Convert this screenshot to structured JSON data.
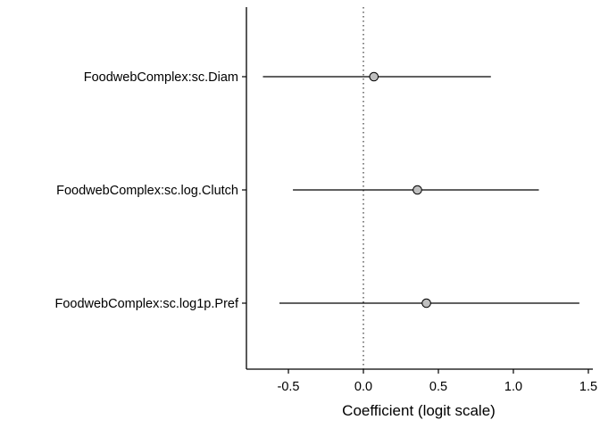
{
  "chart_data": {
    "type": "scatter",
    "subtype": "coefficient-plot",
    "title": "",
    "xlabel": "Coefficient (logit scale)",
    "ylabel": "",
    "xlim": [
      -0.78,
      1.53
    ],
    "xticks": [
      -0.5,
      0.0,
      0.5,
      1.0,
      1.5
    ],
    "xtick_labels": [
      "-0.5",
      "0.0",
      "0.5",
      "1.0",
      "1.5"
    ],
    "reference_line": {
      "x": 0,
      "style": "dotted"
    },
    "grid": false,
    "legend": "none",
    "categories": [
      "FoodwebComplex:sc.Diam",
      "FoodwebComplex:sc.log.Clutch",
      "FoodwebComplex:sc.log1p.Pref"
    ],
    "series": [
      {
        "estimate": [
          0.07,
          0.36,
          0.42
        ],
        "lower": [
          -0.67,
          -0.47,
          -0.56
        ],
        "upper": [
          0.85,
          1.17,
          1.44
        ]
      }
    ],
    "colors": {
      "point_fill": "#bfbfbf",
      "point_stroke": "#000000",
      "line": "#000000"
    }
  }
}
